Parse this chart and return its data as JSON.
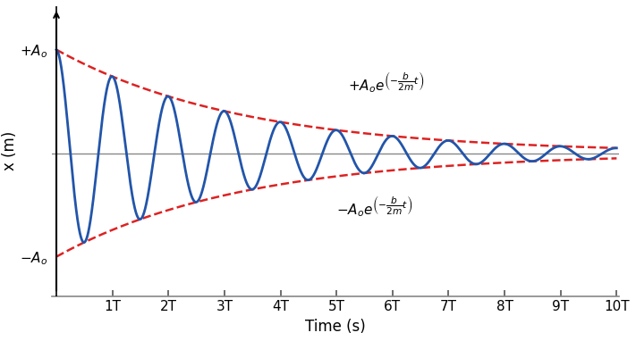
{
  "title": "",
  "xlabel": "Time (s)",
  "ylabel": "x (m)",
  "t_max": 10,
  "decay": 0.3,
  "A0": 1.0,
  "x_tick_labels": [
    "1T",
    "2T",
    "3T",
    "4T",
    "5T",
    "6T",
    "7T",
    "8T",
    "9T",
    "10T"
  ],
  "blue_color": "#2255aa",
  "red_color": "#dd2222",
  "bg_color": "#ffffff",
  "line_color": "#888888"
}
